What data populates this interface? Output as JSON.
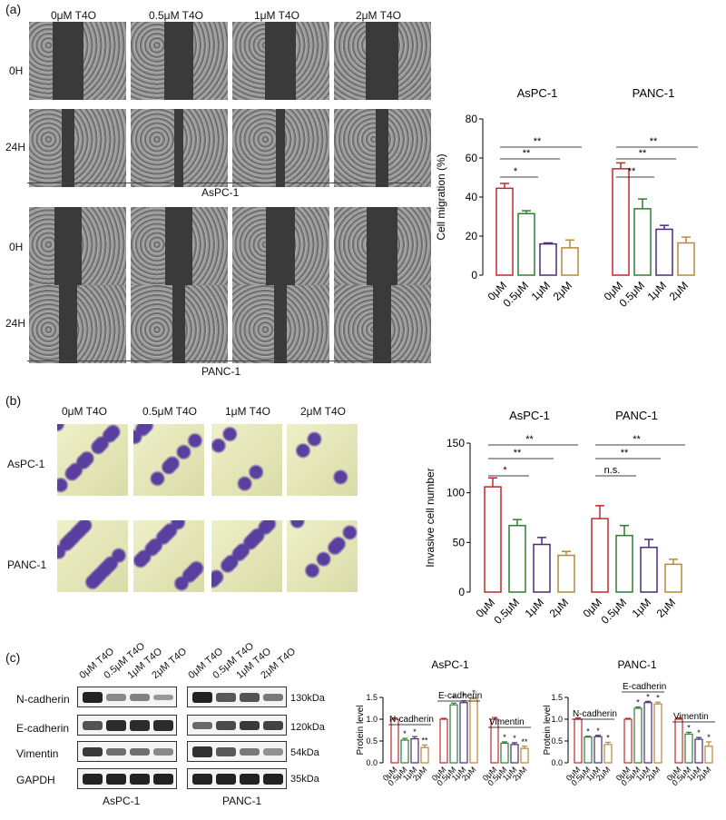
{
  "panel_a": {
    "letter": "(a)",
    "column_headers": [
      "0μM T4O",
      "0.5μM T4O",
      "1μM T4O",
      "2μM T4O"
    ],
    "row_labels": [
      "0H",
      "24H",
      "0H",
      "24H"
    ],
    "cell_line_labels": [
      "AsPC-1",
      "PANC-1"
    ]
  },
  "panel_b": {
    "letter": "(b)",
    "column_headers": [
      "0μM T4O",
      "0.5μM T4O",
      "1μM T4O",
      "2μM T4O"
    ],
    "row_labels": [
      "AsPC-1",
      "PANC-1"
    ]
  },
  "panel_c": {
    "letter": "(c)",
    "lane_labels": [
      "0μM T4O",
      "0.5μM T4O",
      "1μM T4O",
      "2μM T4O"
    ],
    "protein_labels": [
      "N-cadherin",
      "E-cadherin",
      "Vimentin",
      "GAPDH"
    ],
    "kda_labels": [
      "130kDa",
      "120kDa",
      "54kDa",
      "35kDa"
    ],
    "blot_cell_lines": [
      "AsPC-1",
      "PANC-1"
    ]
  },
  "chart_data": [
    {
      "type": "bar",
      "groups": [
        "AsPC-1",
        "PANC-1"
      ],
      "categories": [
        "0μM",
        "0.5μM",
        "1μM",
        "2μM"
      ],
      "series": [
        {
          "name": "AsPC-1",
          "values": [
            44.5,
            31.5,
            16,
            14
          ],
          "errors": [
            2.5,
            1.5,
            0.5,
            4
          ]
        },
        {
          "name": "PANC-1",
          "values": [
            54.5,
            34,
            23.5,
            16.5
          ],
          "errors": [
            3,
            5,
            2,
            3
          ]
        }
      ],
      "ylabel": "Cell migration (%)",
      "ylim": [
        0,
        80
      ],
      "yticks": [
        0,
        20,
        40,
        60,
        80
      ],
      "significance": [
        {
          "group": "AsPC-1",
          "labels": [
            "*",
            "**",
            "**"
          ]
        },
        {
          "group": "PANC-1",
          "labels": [
            "**",
            "**",
            "**"
          ]
        }
      ],
      "colors": [
        "#c0282d",
        "#2e7d32",
        "#4a2a7a",
        "#b5893a"
      ]
    },
    {
      "type": "bar",
      "groups": [
        "AsPC-1",
        "PANC-1"
      ],
      "categories": [
        "0μM",
        "0.5μM",
        "1μM",
        "2μM"
      ],
      "series": [
        {
          "name": "AsPC-1",
          "values": [
            106,
            67,
            48,
            37
          ],
          "errors": [
            9,
            6,
            7,
            4
          ]
        },
        {
          "name": "PANC-1",
          "values": [
            74,
            57,
            45,
            28
          ],
          "errors": [
            13,
            10,
            8,
            5
          ]
        }
      ],
      "ylabel": "Invasive cell number",
      "ylim": [
        0,
        150
      ],
      "yticks": [
        0,
        50,
        100,
        150
      ],
      "significance": [
        {
          "group": "AsPC-1",
          "labels": [
            "*",
            "**",
            "**"
          ]
        },
        {
          "group": "PANC-1",
          "labels": [
            "n.s.",
            "**",
            "**"
          ]
        }
      ],
      "colors": [
        "#c0282d",
        "#2e7d32",
        "#4a2a7a",
        "#b5893a"
      ]
    },
    {
      "type": "bar",
      "title": "AsPC-1",
      "groups": [
        "N-cadherin",
        "E-cadherin",
        "Vimentin"
      ],
      "categories": [
        "0μM",
        "0.5μM",
        "1μM",
        "2μM"
      ],
      "series": [
        {
          "name": "N-cadherin",
          "values": [
            1.0,
            0.52,
            0.55,
            0.35
          ],
          "errors": [
            0.03,
            0.04,
            0.05,
            0.06
          ],
          "stars": [
            "",
            "*",
            "*",
            "**"
          ]
        },
        {
          "name": "E-cadherin",
          "values": [
            1.0,
            1.33,
            1.38,
            1.47
          ],
          "errors": [
            0.02,
            0.04,
            0.04,
            0.03
          ],
          "stars": [
            "",
            "*",
            "*",
            "*"
          ]
        },
        {
          "name": "Vimentin",
          "values": [
            1.0,
            0.45,
            0.42,
            0.33
          ],
          "errors": [
            0.04,
            0.03,
            0.04,
            0.05
          ],
          "stars": [
            "",
            "*",
            "*",
            "**"
          ]
        }
      ],
      "ylabel": "Protein level",
      "ylim": [
        0,
        1.5
      ],
      "yticks": [
        0.0,
        0.5,
        1.0,
        1.5
      ],
      "colors": [
        "#c0282d",
        "#2e7d32",
        "#4a2a7a",
        "#b5893a"
      ]
    },
    {
      "type": "bar",
      "title": "PANC-1",
      "groups": [
        "N-cadherin",
        "E-cadherin",
        "Vimentin"
      ],
      "categories": [
        "0μM",
        "0.5μM",
        "1μM",
        "2μM"
      ],
      "series": [
        {
          "name": "N-cadherin",
          "values": [
            1.0,
            0.59,
            0.6,
            0.42
          ],
          "errors": [
            0.03,
            0.02,
            0.03,
            0.05
          ],
          "stars": [
            "",
            "*",
            "*",
            "*"
          ]
        },
        {
          "name": "E-cadherin",
          "values": [
            1.0,
            1.25,
            1.38,
            1.35
          ],
          "errors": [
            0.02,
            0.03,
            0.03,
            0.04
          ],
          "stars": [
            "",
            "*",
            "*",
            "*"
          ]
        },
        {
          "name": "Vimentin",
          "values": [
            1.0,
            0.66,
            0.54,
            0.38
          ],
          "errors": [
            0.03,
            0.04,
            0.04,
            0.1
          ],
          "stars": [
            "",
            "*",
            "*",
            "*"
          ]
        }
      ],
      "ylabel": "Protein level",
      "ylim": [
        0,
        1.5
      ],
      "yticks": [
        0.0,
        0.5,
        1.0,
        1.5
      ],
      "colors": [
        "#c0282d",
        "#2e7d32",
        "#4a2a7a",
        "#b5893a"
      ]
    }
  ]
}
